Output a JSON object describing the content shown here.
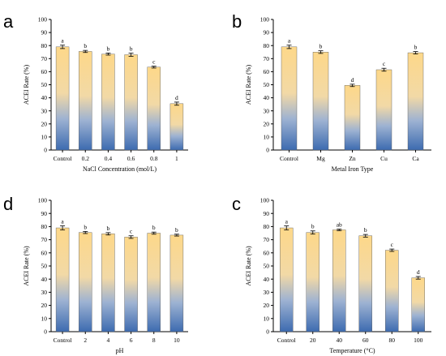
{
  "chart_data": [
    {
      "panel": "a",
      "type": "bar",
      "xlabel": "NaCl Concentration (mol/L)",
      "ylabel": "ACEI Rate (%)",
      "ylim": [
        0,
        100
      ],
      "yticks": [
        "0",
        "10",
        "20",
        "30",
        "40",
        "50",
        "60",
        "70",
        "80",
        "90",
        "100"
      ],
      "categories": [
        "Control",
        "0.2",
        "0.4",
        "0.6",
        "0.8",
        "1"
      ],
      "values": [
        79,
        75.5,
        73.5,
        73,
        63.5,
        35.5
      ],
      "errors": [
        1.3,
        0.8,
        0.8,
        1.2,
        0.7,
        1.2
      ],
      "letters": [
        "a",
        "b",
        "b",
        "b",
        "c",
        "d"
      ]
    },
    {
      "panel": "b",
      "type": "bar",
      "xlabel": "Metal Iron Type",
      "ylabel": "ACEI Rate (%)",
      "ylim": [
        0,
        100
      ],
      "yticks": [
        "0",
        "10",
        "20",
        "30",
        "40",
        "50",
        "60",
        "70",
        "80",
        "90",
        "100"
      ],
      "categories": [
        "Control",
        "Mg",
        "Zn",
        "Cu",
        "Ca"
      ],
      "values": [
        79,
        75,
        49.5,
        61.5,
        74.5
      ],
      "errors": [
        1.3,
        1.0,
        0.9,
        1.1,
        0.9
      ],
      "letters": [
        "a",
        "b",
        "d",
        "c",
        "b"
      ]
    },
    {
      "panel": "d",
      "type": "bar",
      "xlabel": "pH",
      "ylabel": "ACEI Rate (%)",
      "ylim": [
        0,
        100
      ],
      "yticks": [
        "0",
        "10",
        "20",
        "30",
        "40",
        "50",
        "60",
        "70",
        "80",
        "90",
        "100"
      ],
      "categories": [
        "Control",
        "2",
        "4",
        "6",
        "8",
        "10"
      ],
      "values": [
        79,
        75.5,
        74.5,
        72,
        75,
        73.5
      ],
      "errors": [
        1.5,
        0.8,
        0.9,
        1.0,
        0.8,
        0.7
      ],
      "letters": [
        "a",
        "b",
        "b",
        "c",
        "b",
        "b"
      ]
    },
    {
      "panel": "c",
      "type": "bar",
      "xlabel": "Temperature (°C)",
      "ylabel": "ACEI Rate (%)",
      "ylim": [
        0,
        100
      ],
      "yticks": [
        "0",
        "10",
        "20",
        "30",
        "40",
        "50",
        "60",
        "70",
        "80",
        "90",
        "100"
      ],
      "categories": [
        "Control",
        "20",
        "40",
        "60",
        "80",
        "100"
      ],
      "values": [
        79,
        75.5,
        77.5,
        73,
        62,
        41
      ],
      "errors": [
        1.5,
        1.2,
        0.6,
        1.0,
        0.9,
        1.0
      ],
      "letters": [
        "a",
        "b",
        "ab",
        "b",
        "c",
        "d"
      ]
    }
  ],
  "colors": {
    "bar_top": "#fdd889",
    "bar_bottom": "#3d6bb0",
    "axis": "#000000"
  }
}
